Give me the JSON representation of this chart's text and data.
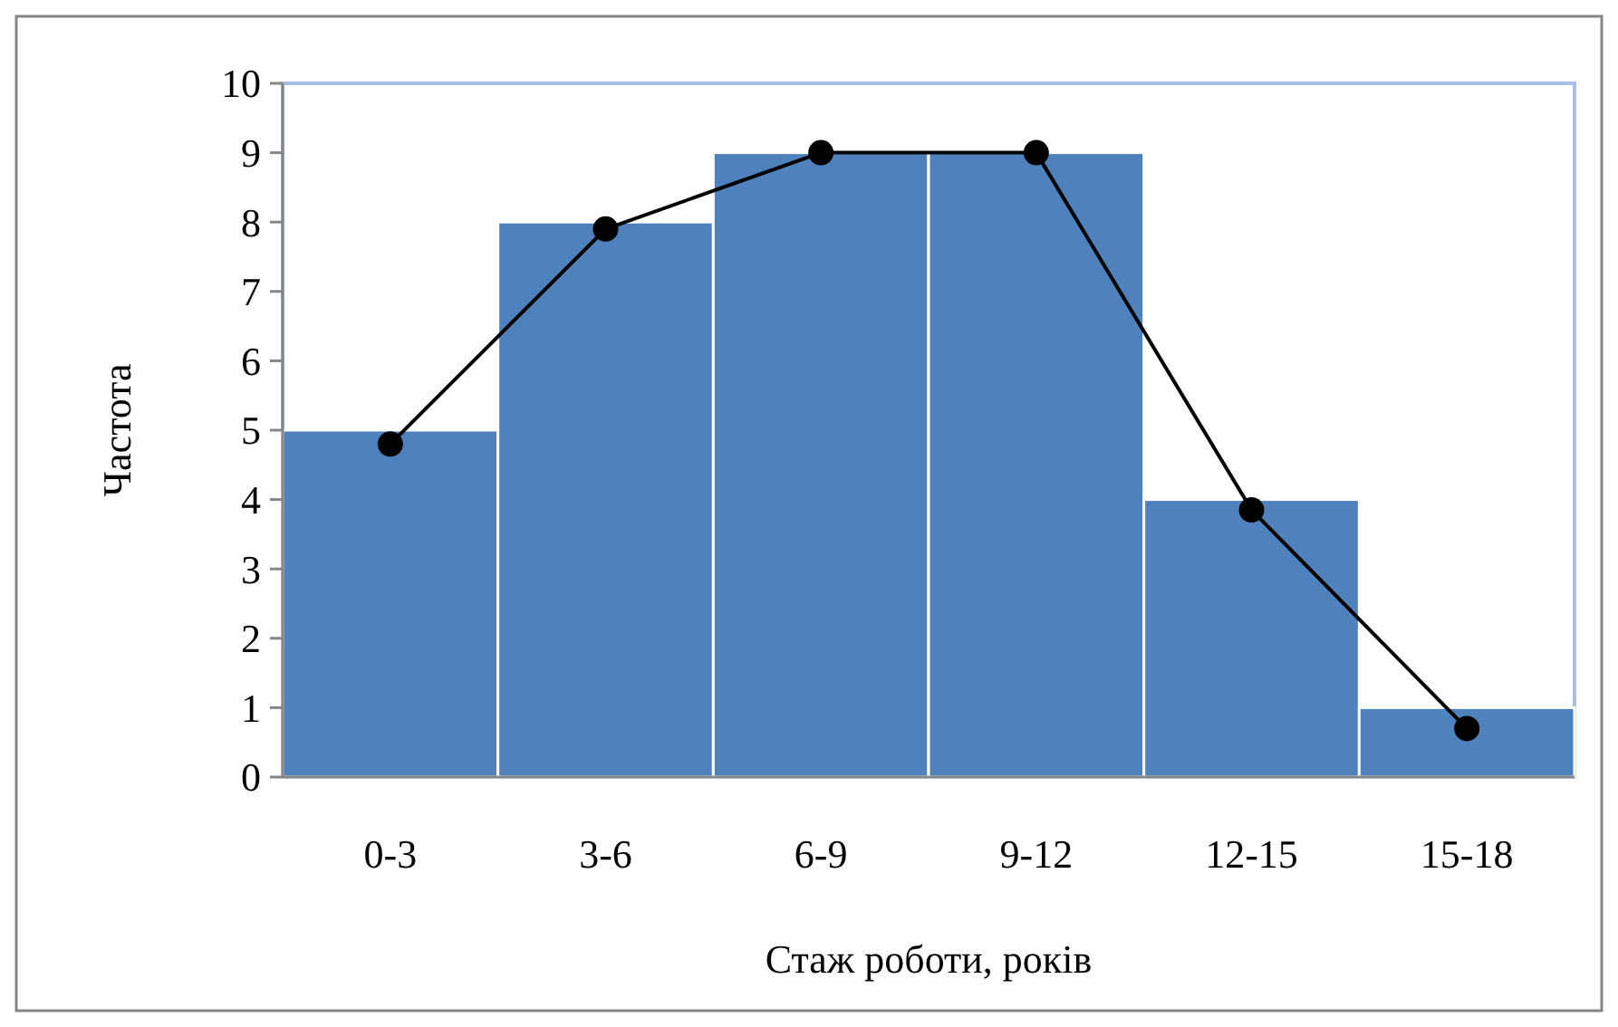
{
  "chart_data": {
    "type": "bar",
    "xlabel": "Стаж роботи, років",
    "ylabel": "Частота",
    "categories": [
      "0-3",
      "3-6",
      "6-9",
      "9-12",
      "12-15",
      "15-18"
    ],
    "series": [
      {
        "color": "#4f81bd",
        "values": [
          5,
          8,
          9,
          9,
          4,
          1
        ]
      },
      {
        "type": "line",
        "color": "#000000",
        "values": [
          4.8,
          7.9,
          9,
          9,
          3.85,
          0.7
        ],
        "marker": "circle",
        "line_style": "solid"
      }
    ],
    "ylim": [
      0,
      10
    ],
    "yticks": [
      0,
      1,
      2,
      3,
      4,
      5,
      6,
      7,
      8,
      9,
      10
    ],
    "grid": false
  }
}
